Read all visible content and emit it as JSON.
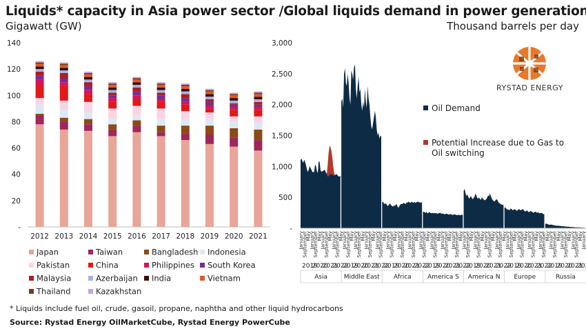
{
  "title": "Liquids* capacity in Asia power sector /Global liquids demand in power generation",
  "subtitle_left": "Gigawatt (GW)",
  "subtitle_right": "Thousand barrels per day",
  "footnote": "* Liquids include fuel oil, crude, gasoil, propane, naphtha and other liquid hydrocarbons",
  "source": "Source: Rystad Energy OilMarketCube, Rystad Energy PowerCube",
  "logo_text": "RYSTAD ENERGY",
  "chart_data": [
    {
      "type": "bar",
      "stacked": true,
      "ylim": [
        0,
        140
      ],
      "yticks": [
        "-",
        "20",
        "40",
        "60",
        "80",
        "100",
        "120",
        "140"
      ],
      "categories": [
        "2012",
        "2013",
        "2014",
        "2015",
        "2016",
        "2017",
        "2018",
        "2019",
        "2020",
        "2021"
      ],
      "series": [
        {
          "name": "Japan",
          "color": "#e8a598",
          "values": [
            78,
            74,
            73,
            69,
            72,
            69,
            66,
            63,
            61,
            58
          ]
        },
        {
          "name": "Taiwan",
          "color": "#a0265c",
          "values": [
            7,
            6,
            5,
            5,
            5,
            3,
            5,
            7,
            7,
            8
          ]
        },
        {
          "name": "Bangladesh",
          "color": "#8b4a16",
          "values": [
            1,
            3,
            4,
            4,
            4,
            5,
            6,
            7,
            7,
            8
          ]
        },
        {
          "name": "Indonesia",
          "color": "#dce9f4",
          "values": [
            7,
            6,
            5,
            4,
            4,
            5,
            5,
            5,
            5,
            5
          ]
        },
        {
          "name": "Pakistan",
          "color": "#fad4e4",
          "values": [
            5,
            7,
            8,
            8,
            7,
            8,
            6,
            5,
            4,
            5
          ]
        },
        {
          "name": "China",
          "color": "#e31818",
          "values": [
            10,
            11,
            6,
            5,
            5,
            5,
            5,
            3,
            5,
            5
          ]
        },
        {
          "name": "Philippines",
          "color": "#d4145a",
          "values": [
            4,
            3,
            3,
            3,
            3,
            2,
            2,
            2,
            2,
            2
          ]
        },
        {
          "name": "South Korea",
          "color": "#7b2d8e",
          "values": [
            3,
            3,
            3,
            2,
            3,
            3,
            3,
            3,
            2,
            2
          ]
        },
        {
          "name": "Malaysia",
          "color": "#b01c1c",
          "values": [
            3,
            4,
            3,
            2,
            3,
            2,
            3,
            2,
            1,
            2
          ]
        },
        {
          "name": "Azerbaijan",
          "color": "#a5b4e6",
          "values": [
            2,
            2,
            2,
            2,
            2,
            2,
            2,
            2,
            2,
            2
          ]
        },
        {
          "name": "India",
          "color": "#3a1010",
          "values": [
            2,
            2,
            2,
            2,
            2,
            2,
            2,
            2,
            2,
            2
          ]
        },
        {
          "name": "Vietnam",
          "color": "#e05a2a",
          "values": [
            2,
            2,
            2,
            2,
            2,
            2,
            2,
            2,
            2,
            2
          ]
        },
        {
          "name": "Thailand",
          "color": "#7a3a10",
          "values": [
            1,
            1,
            1,
            1,
            1,
            1,
            1,
            1,
            1,
            1
          ]
        },
        {
          "name": "Kazakhstan",
          "color": "#c9a0e8",
          "values": [
            1,
            1,
            1,
            1,
            1,
            1,
            1,
            1,
            1,
            1
          ]
        }
      ]
    },
    {
      "type": "area",
      "stacked": true,
      "ylim": [
        0,
        3000
      ],
      "yticks": [
        "-",
        "500",
        "1,000",
        "1,500",
        "2,000",
        "2,500",
        "3,000"
      ],
      "regions": [
        "Asia",
        "Middle East",
        "Africa",
        "America S",
        "America N",
        "Europe",
        "Russia"
      ],
      "years": [
        "2019",
        "2020",
        "2021",
        "2022"
      ],
      "month_labels": [
        "January",
        "September",
        "May"
      ],
      "series": [
        {
          "name": "Oil Demand",
          "color": "#0e2b45",
          "values": {
            "Asia": [
              1110,
              1125,
              1085,
              1060,
              1110,
              1070,
              1020,
              950,
              910,
              945,
              1005,
              975,
              945,
              910,
              905,
              915,
              1025,
              1010,
              920,
              895,
              1085,
              1075,
              940,
              915,
              920,
              930,
              945,
              935,
              900,
              880,
              840,
              845,
              865,
              890,
              880,
              870,
              860,
              855,
              860,
              870,
              875,
              850,
              840,
              835,
              850
            ],
            "Middle East": [
              2050,
              2100,
              1950,
              2500,
              2590,
              2350,
              2300,
              2500,
              2350,
              2100,
              2000,
              2550,
              2500,
              2400,
              2600,
              2650,
              2250,
              2100,
              2300,
              2450,
              2200,
              2250,
              2000,
              1900,
              2050,
              1950,
              2250,
              2050,
              1950,
              2300,
              2100,
              2000,
              1800,
              1650,
              1600,
              1700,
              1800,
              1900,
              1800,
              1600,
              1500,
              1550,
              1450,
              1500,
              1480
            ],
            "Africa": [
              420,
              430,
              400,
              390,
              410,
              380,
              360,
              370,
              390,
              400,
              370,
              360,
              350,
              370,
              360,
              380,
              390,
              350,
              330,
              360,
              380,
              395,
              390,
              400,
              410,
              400,
              390,
              420,
              410,
              430,
              420,
              410,
              420,
              430,
              410,
              420,
              420,
              410,
              420,
              430,
              425,
              420,
              410,
              420,
              415
            ],
            "America S": [
              260,
              270,
              255,
              250,
              265,
              240,
              250,
              260,
              255,
              240,
              250,
              245,
              240,
              250,
              240,
              245,
              235,
              240,
              245,
              250,
              240,
              235,
              240,
              230,
              225,
              230,
              235,
              230,
              225,
              220,
              230,
              225,
              220,
              215,
              220,
              225,
              220,
              215,
              210,
              220,
              215,
              210,
              215,
              220,
              215
            ],
            "America N": [
              600,
              640,
              570,
              520,
              550,
              510,
              480,
              500,
              520,
              490,
              470,
              490,
              510,
              560,
              530,
              490,
              480,
              500,
              470,
              460,
              500,
              480,
              470,
              450,
              460,
              470,
              500,
              530,
              520,
              560,
              520,
              480,
              460,
              440,
              430,
              450,
              470,
              460,
              430,
              410,
              400,
              390,
              380,
              380,
              370
            ],
            "Europe": [
              330,
              340,
              320,
              300,
              310,
              290,
              300,
              320,
              310,
              290,
              300,
              310,
              300,
              290,
              280,
              300,
              310,
              300,
              290,
              300,
              310,
              300,
              280,
              270,
              280,
              290,
              270,
              260,
              270,
              280,
              270,
              260,
              250,
              260,
              270,
              260,
              250,
              260,
              250,
              240,
              250,
              245,
              240,
              230,
              225
            ],
            "Russia": [
              70,
              75,
              70,
              65,
              60,
              55,
              60,
              58,
              55,
              50,
              48,
              45,
              42,
              40,
              42,
              40,
              38,
              36,
              35,
              34,
              32,
              30,
              28,
              27,
              26,
              25,
              24,
              22,
              21,
              20,
              19,
              18,
              17,
              16,
              15,
              15,
              14,
              13,
              12,
              12,
              11,
              10,
              10,
              9,
              8
            ]
          }
        },
        {
          "name": "Potential Increase due to Gas to Oil switching",
          "color": "#b5392a",
          "values": {
            "Asia": [
              0,
              0,
              0,
              0,
              0,
              0,
              0,
              0,
              0,
              0,
              0,
              0,
              0,
              0,
              0,
              0,
              0,
              0,
              0,
              0,
              0,
              0,
              0,
              0,
              0,
              0,
              0,
              0,
              0,
              0,
              200,
              380,
              470,
              420,
              370,
              280,
              150,
              40,
              0,
              0,
              0,
              0,
              0,
              0,
              0
            ]
          }
        }
      ]
    }
  ]
}
